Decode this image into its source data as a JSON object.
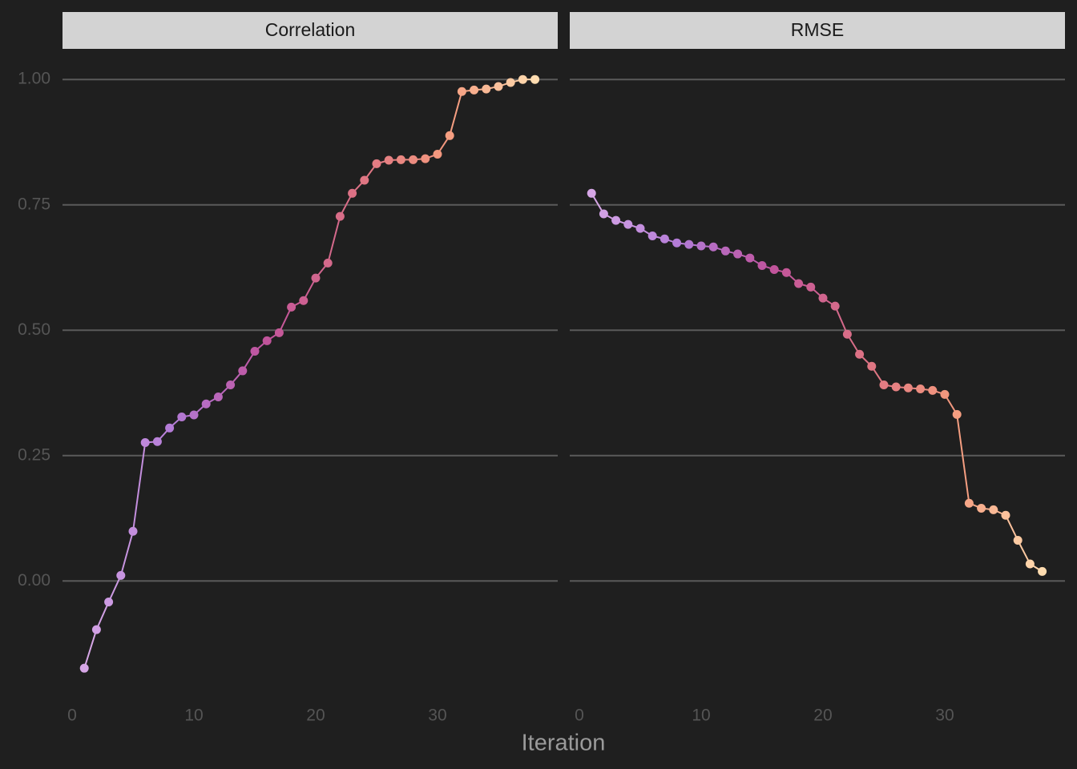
{
  "chart_data": {
    "type": "line",
    "x_label": "Iteration",
    "x": [
      1,
      2,
      3,
      4,
      5,
      6,
      7,
      8,
      9,
      10,
      11,
      12,
      13,
      14,
      15,
      16,
      17,
      18,
      19,
      20,
      21,
      22,
      23,
      24,
      25,
      26,
      27,
      28,
      29,
      30,
      31,
      32,
      33,
      34,
      35,
      36,
      37,
      38
    ],
    "xlim": [
      -0.79,
      39.87
    ],
    "xticks": [
      0,
      10,
      20,
      30
    ],
    "ylim": [
      -0.236,
      1.061
    ],
    "yticks": [
      {
        "value": 0,
        "label": "0.00"
      },
      {
        "value": 0.25,
        "label": "0.25"
      },
      {
        "value": 0.5,
        "label": "0.50"
      },
      {
        "value": 0.75,
        "label": "0.75"
      },
      {
        "value": 1,
        "label": "1.00"
      }
    ],
    "grid": true,
    "color_gradient": [
      "#d6a6e6",
      "#b27ad6",
      "#c0539c",
      "#dd7284",
      "#f49a7e",
      "#ffdcb0"
    ],
    "facets": [
      {
        "title": "Correlation",
        "values": [
          -0.174,
          -0.097,
          -0.042,
          0.011,
          0.099,
          0.276,
          0.278,
          0.305,
          0.327,
          0.331,
          0.353,
          0.367,
          0.391,
          0.419,
          0.458,
          0.479,
          0.495,
          0.546,
          0.559,
          0.604,
          0.634,
          0.727,
          0.773,
          0.799,
          0.832,
          0.839,
          0.84,
          0.84,
          0.842,
          0.851,
          0.888,
          0.976,
          0.979,
          0.981,
          0.986,
          0.994,
          1.0,
          1.0
        ]
      },
      {
        "title": "RMSE",
        "values": [
          0.773,
          0.732,
          0.719,
          0.711,
          0.703,
          0.688,
          0.682,
          0.674,
          0.671,
          0.668,
          0.666,
          0.658,
          0.652,
          0.644,
          0.629,
          0.621,
          0.615,
          0.593,
          0.586,
          0.564,
          0.548,
          0.492,
          0.452,
          0.428,
          0.391,
          0.387,
          0.385,
          0.383,
          0.38,
          0.372,
          0.332,
          0.155,
          0.145,
          0.142,
          0.131,
          0.081,
          0.034,
          0.019
        ]
      }
    ]
  }
}
